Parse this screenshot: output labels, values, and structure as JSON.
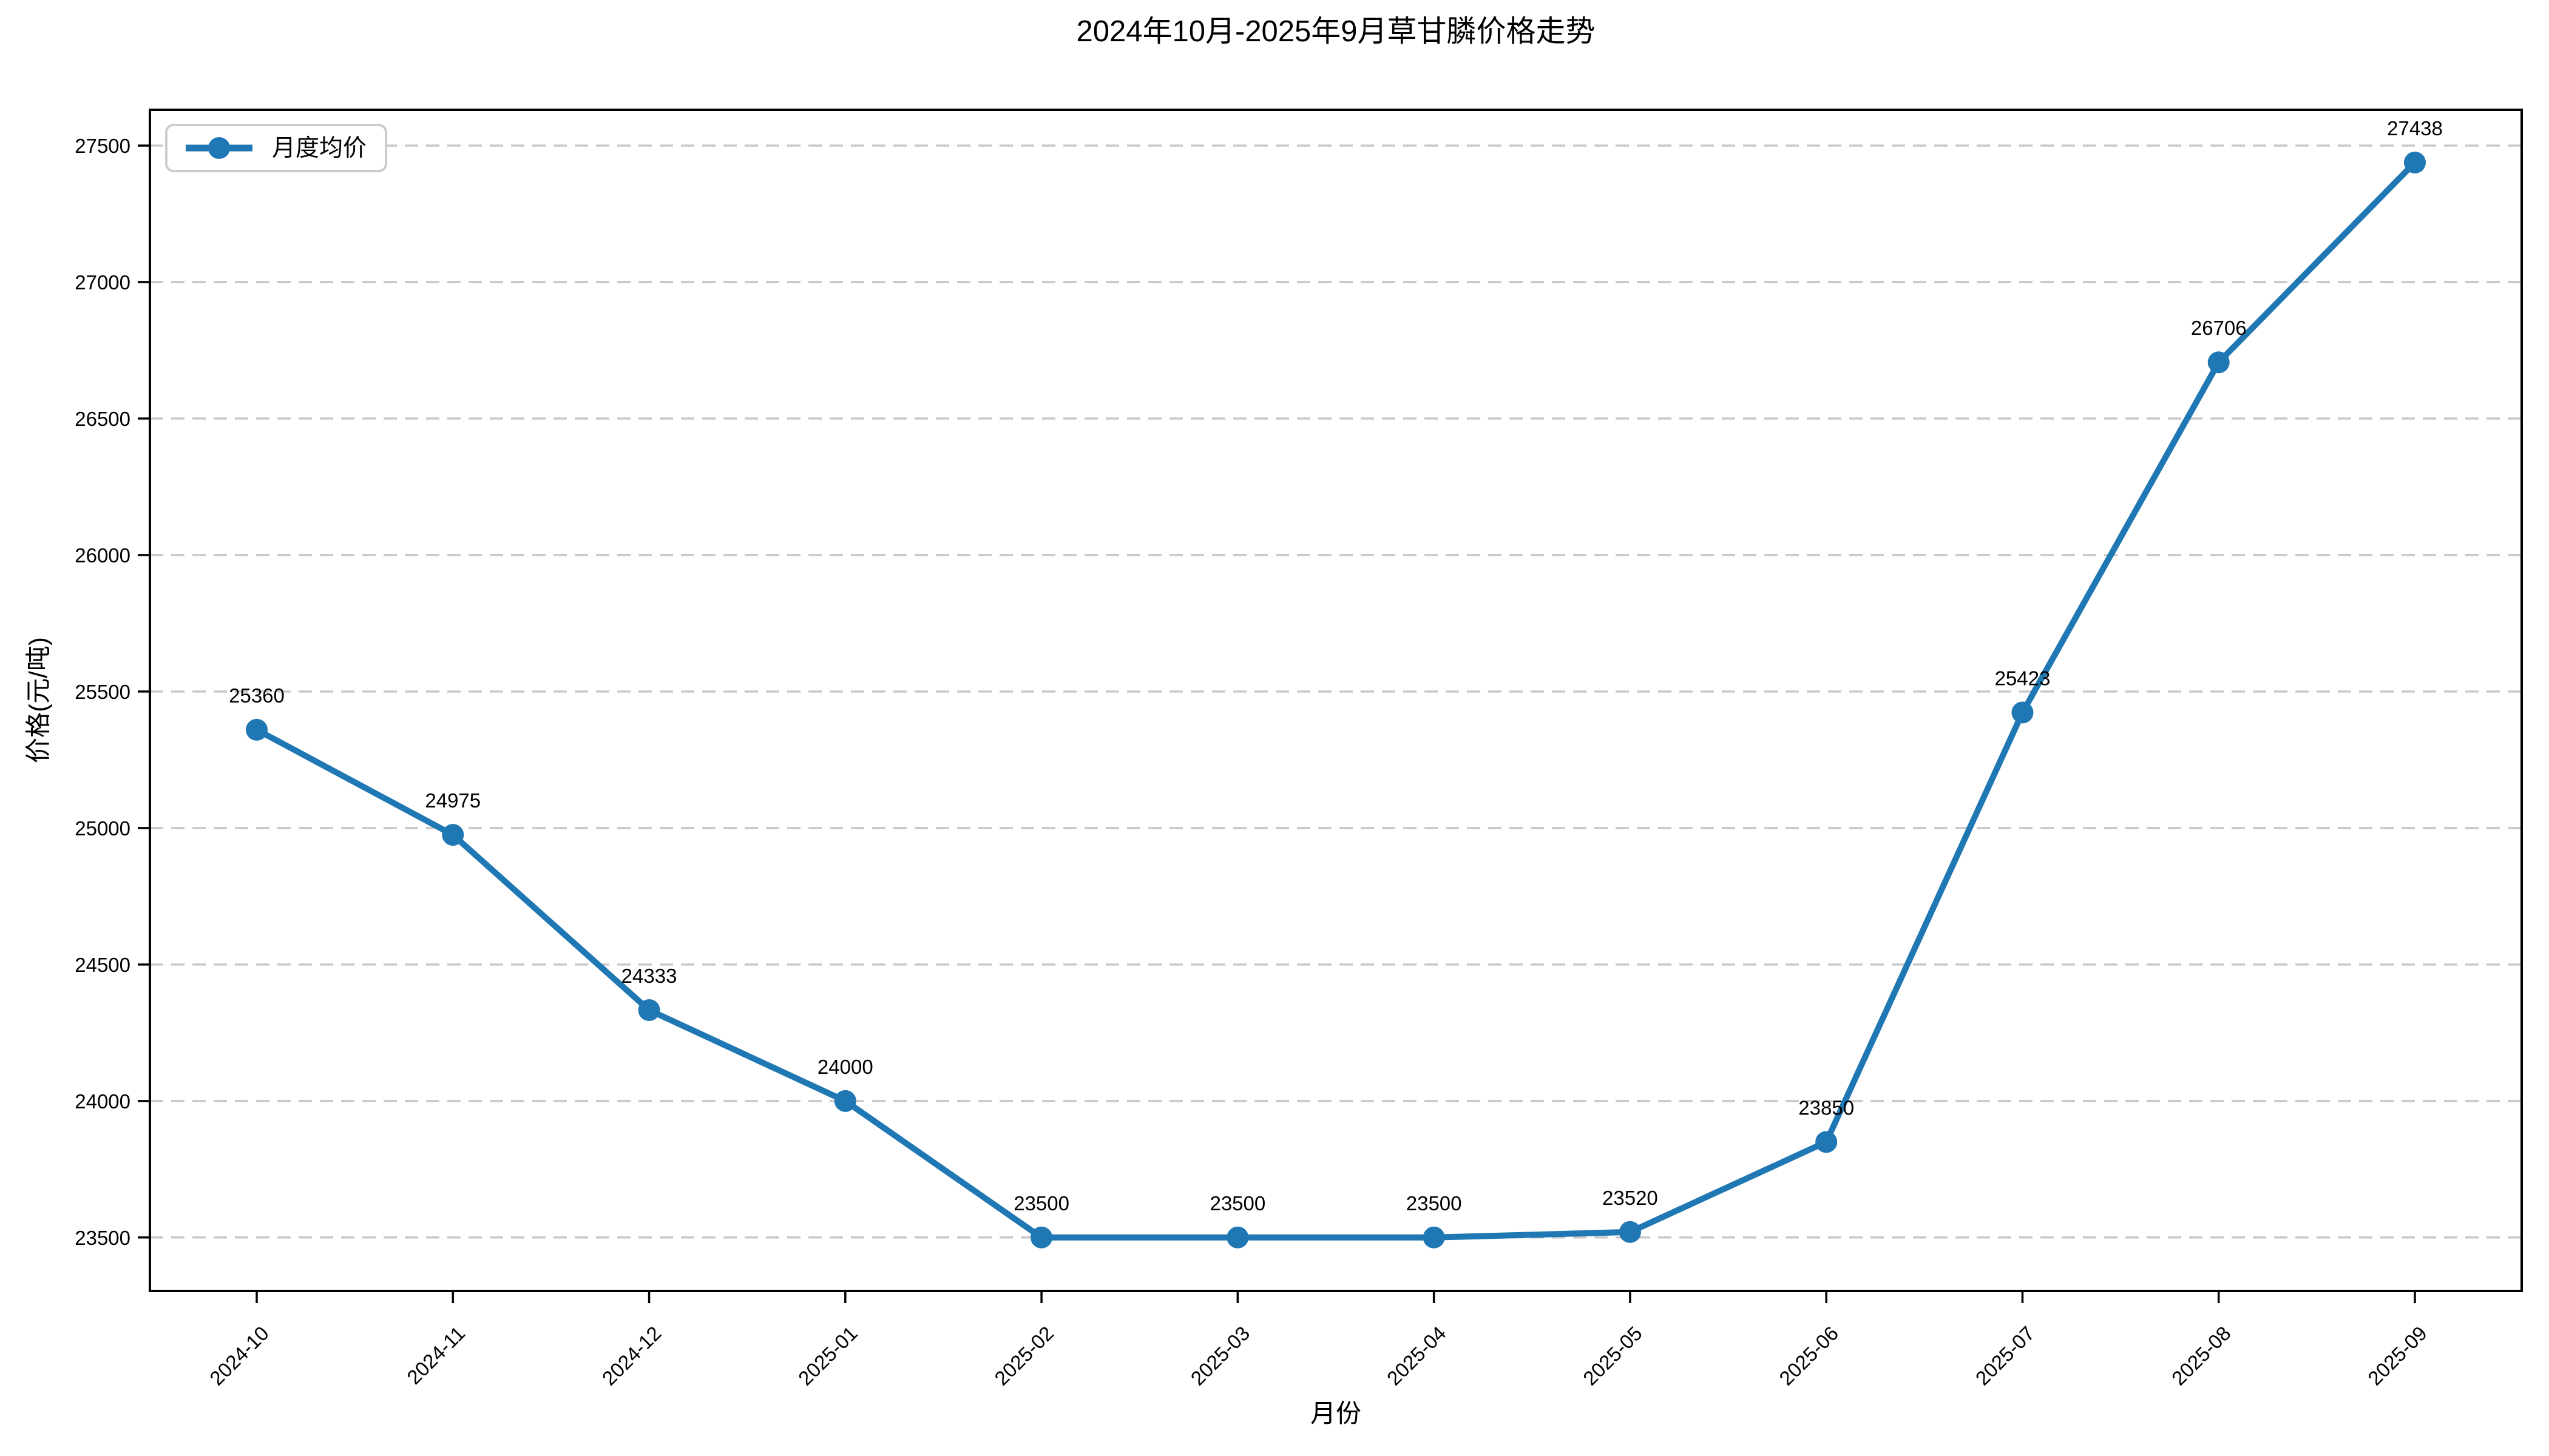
{
  "title": "2024年10月-2025年9月草甘膦价格走势",
  "legend": {
    "label": "月度均价"
  },
  "axes": {
    "xlabel": "月份",
    "ylabel": "价格(元/吨)"
  },
  "chart_data": {
    "type": "line",
    "title": "2024年10月-2025年9月草甘膦价格走势",
    "xlabel": "月份",
    "ylabel": "价格(元/吨)",
    "categories": [
      "2024-10",
      "2024-11",
      "2024-12",
      "2025-01",
      "2025-02",
      "2025-03",
      "2025-04",
      "2025-05",
      "2025-06",
      "2025-07",
      "2025-08",
      "2025-09"
    ],
    "series": [
      {
        "name": "月度均价",
        "values": [
          25360,
          24975,
          24333,
          24000,
          23500,
          23500,
          23500,
          23520,
          23850,
          25423,
          26706,
          27438
        ]
      }
    ],
    "data_labels": [
      25360,
      24975,
      24333,
      24000,
      23500,
      23500,
      23500,
      23520,
      23850,
      25423,
      26706,
      27438
    ],
    "yticks": [
      23500,
      24000,
      24500,
      25000,
      25500,
      26000,
      26500,
      27000,
      27500
    ],
    "ylim": [
      23304,
      27631
    ],
    "grid": "horizontal-dashed",
    "legend_position": "upper left",
    "x_tick_rotation": 45,
    "colors": {
      "line": "#1f77b4",
      "marker": "#1f77b4",
      "grid": "#c8c8c8",
      "spine": "#000000",
      "text": "#000000",
      "legend_border": "#cccccc"
    }
  }
}
